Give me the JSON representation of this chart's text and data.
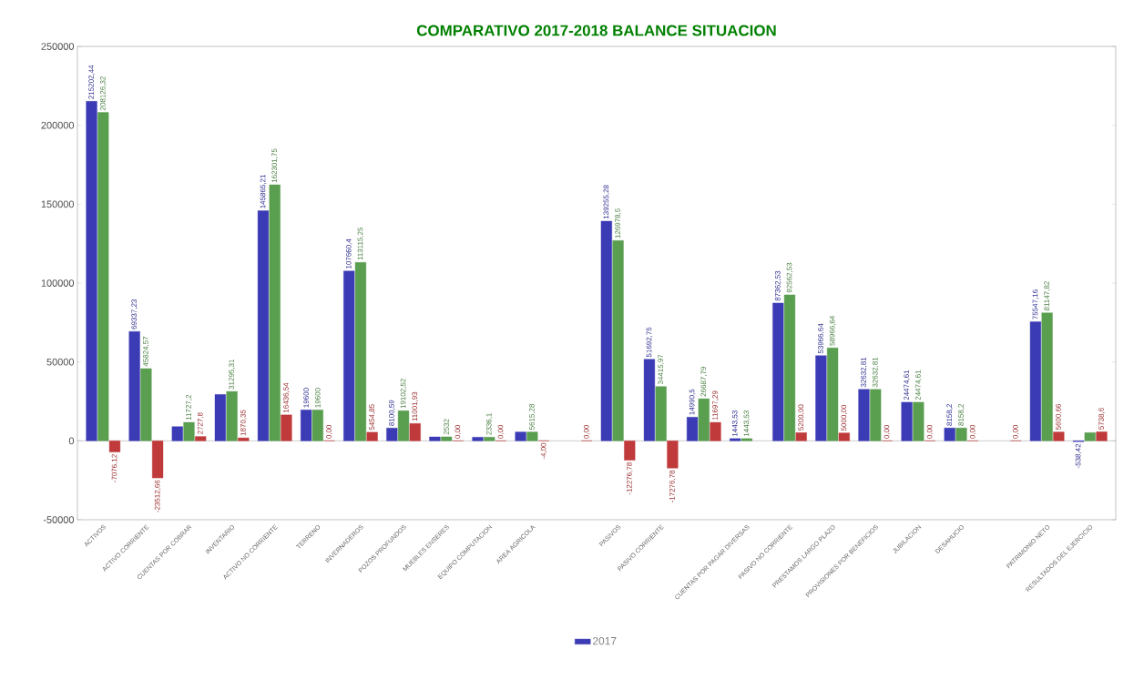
{
  "chart_data": {
    "type": "bar",
    "title": "COMPARATIVO 2017-2018 BALANCE SITUACION",
    "categories": [
      "ACTIVOS",
      "ACTIVO CORRIENTE",
      "CUENTAS POR COBRAR",
      "INVENTARIO",
      "ACTIVO NO CORRIENTE",
      "TERRENO",
      "INVERNADEROS",
      "POZOS PROFUNDOS",
      "MUEBLES ENSERES",
      "EQUIPO COMPUTACION",
      "AREA AGRICOLA",
      null,
      "PASIVOS",
      "PASIVO CORRIENTE",
      null,
      "CUENTAS POR PAGAR DIVERSAS",
      "PASIVO NO CORRIENTE",
      "PRESTAMOS LARGO PLAZO",
      "PROVISIONES POR BENEFICIOS",
      "JUBILACION",
      "DESAHUCIO",
      null,
      "PATRIMONIO NETO",
      "RESULTADOS DEL EJERCICIO"
    ],
    "series": [
      {
        "name": "2017",
        "color": "#3b3bb5",
        "values": [
          215202.44,
          69337.23,
          9000,
          29400,
          145865.21,
          19600,
          107660.4,
          8100.59,
          2500,
          2300,
          5600,
          null,
          139255.28,
          51692.75,
          14990.5,
          1443.53,
          87362.53,
          53966.64,
          32632.81,
          24474.61,
          8158.2,
          null,
          75547.16,
          -538.42
        ],
        "value_labels": [
          "215202,44",
          "69337,23",
          null,
          null,
          "145865,21",
          "19600",
          "107660,4",
          "8100,59",
          null,
          null,
          null,
          null,
          "139255,28",
          "51692,75",
          "14990,5",
          "1443,53",
          "87362,53",
          "53966,64",
          "32632,81",
          "24474,61",
          "8158,2",
          null,
          "75547,16",
          "-538,42"
        ]
      },
      {
        "color": "#5a9e50",
        "values": [
          208126.32,
          45824.57,
          11727.2,
          31295.31,
          162301.75,
          19600,
          113115.25,
          19102.52,
          2532,
          2336.1,
          5615.28,
          null,
          126978.5,
          34415.97,
          26687.79,
          1443.53,
          92562.53,
          58966.64,
          32632.81,
          24474.61,
          8158.2,
          null,
          81147.82,
          5200
        ],
        "value_labels": [
          "208126,32",
          "45824,57",
          "11727,2",
          "31295,31",
          "162301,75",
          "19600",
          "113115,25",
          "19102,52",
          "2532",
          "2336,1",
          "5615,28",
          null,
          "126978,5",
          "34415,97",
          "26687,79",
          "1443,53",
          "92562,53",
          "58966,64",
          "32632,81",
          "24474,61",
          "8158,2",
          null,
          "81147,82",
          null
        ]
      },
      {
        "color": "#c0393b",
        "values": [
          -7076.12,
          -23512.66,
          2727.8,
          1870.35,
          16436.54,
          0,
          5454.85,
          11001.93,
          0,
          0,
          -4,
          0,
          -12276.78,
          -17276.78,
          11697.29,
          null,
          5200,
          5000,
          0,
          0,
          0,
          0,
          5600.66,
          5738.6
        ],
        "value_labels": [
          "-7076,12",
          "-23512,66",
          "2727,8",
          "1870,35",
          "16436,54",
          "0,00",
          "5454,85",
          "11001,93",
          "0,00",
          "0,00",
          "-4,00",
          "0,00",
          "-12276,78",
          "-17276,78",
          "11697,29",
          null,
          "5200,00",
          "5000,00",
          "0,00",
          "0,00",
          "0,00",
          "0,00",
          "5600,66",
          "5738,6"
        ]
      }
    ],
    "ylim": [
      -50000,
      250000
    ],
    "yticks": [
      -50000,
      0,
      50000,
      100000,
      150000,
      200000,
      250000
    ],
    "legend": "bottom"
  }
}
